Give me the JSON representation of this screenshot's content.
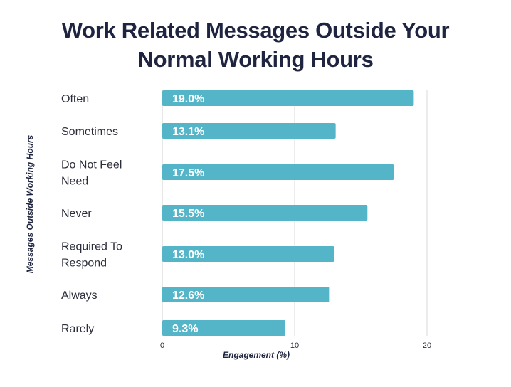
{
  "chart_data": {
    "type": "bar",
    "orientation": "horizontal",
    "title_lines": [
      "Work Related Messages Outside Your",
      "Normal Working Hours"
    ],
    "xlabel": "Engagement (%)",
    "ylabel": "Messages Outside Working Hours",
    "categories": [
      [
        "Often"
      ],
      [
        "Sometimes"
      ],
      [
        "Do Not Feel",
        "Need"
      ],
      [
        "Never"
      ],
      [
        "Required To",
        "Respond"
      ],
      [
        "Always"
      ],
      [
        "Rarely"
      ]
    ],
    "values": [
      19.0,
      13.1,
      17.5,
      15.5,
      13.0,
      12.6,
      9.3
    ],
    "value_labels": [
      "19.0%",
      "13.1%",
      "17.5%",
      "15.5%",
      "13.0%",
      "12.6%",
      "9.3%"
    ],
    "xlim": [
      0,
      20
    ],
    "xticks": [
      0,
      10,
      20
    ],
    "grid": true,
    "bar_color": "#55b5c8",
    "grid_color": "#d9d9d9",
    "text_color": "#1f2540"
  }
}
